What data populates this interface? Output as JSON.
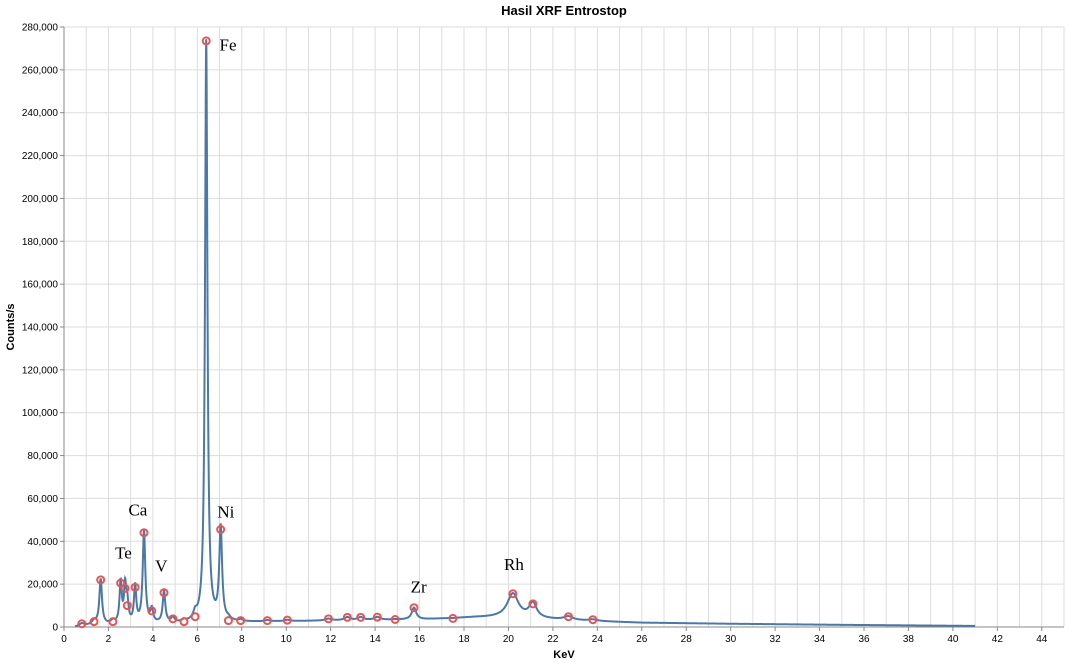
{
  "chart_data": {
    "type": "line",
    "title": "Hasil XRF Entrostop",
    "xlabel": "KeV",
    "ylabel": "Counts/s",
    "xlim": [
      0,
      45
    ],
    "ylim": [
      0,
      280000
    ],
    "x_ticks": [
      0,
      2,
      4,
      6,
      8,
      10,
      12,
      14,
      16,
      18,
      20,
      22,
      24,
      26,
      28,
      30,
      32,
      34,
      36,
      38,
      40,
      42,
      44
    ],
    "y_ticks": [
      0,
      20000,
      40000,
      60000,
      80000,
      100000,
      120000,
      140000,
      160000,
      180000,
      200000,
      220000,
      240000,
      260000,
      280000
    ],
    "y_tick_labels": [
      "0",
      "20,000",
      "40,000",
      "60,000",
      "80,000",
      "100,000",
      "120,000",
      "140,000",
      "160,000",
      "180,000",
      "200,000",
      "220,000",
      "240,000",
      "260,000",
      "280,000"
    ],
    "grid": true,
    "spectrum_range": [
      0.5,
      41
    ],
    "baseline": [
      [
        0.5,
        0
      ],
      [
        1.0,
        500
      ],
      [
        2.0,
        1000
      ],
      [
        5.0,
        1500
      ],
      [
        8.0,
        2200
      ],
      [
        12.0,
        3000
      ],
      [
        16.0,
        3500
      ],
      [
        18.5,
        4500
      ],
      [
        20.0,
        4500
      ],
      [
        23.0,
        3000
      ],
      [
        26.0,
        2000
      ],
      [
        30.0,
        1500
      ],
      [
        35.0,
        1000
      ],
      [
        41.0,
        500
      ]
    ],
    "peaks": [
      {
        "x": 0.8,
        "y": 1500,
        "width": 0.12
      },
      {
        "x": 1.35,
        "y": 2500,
        "width": 0.12
      },
      {
        "x": 1.65,
        "y": 22000,
        "width": 0.07
      },
      {
        "x": 2.2,
        "y": 2500,
        "width": 0.1
      },
      {
        "x": 2.55,
        "y": 20500,
        "width": 0.06
      },
      {
        "x": 2.75,
        "y": 18000,
        "width": 0.06
      },
      {
        "x": 2.85,
        "y": 10000,
        "width": 0.06
      },
      {
        "x": 3.2,
        "y": 18500,
        "width": 0.06
      },
      {
        "x": 3.6,
        "y": 44000,
        "width": 0.07
      },
      {
        "x": 3.95,
        "y": 7500,
        "width": 0.07
      },
      {
        "x": 4.5,
        "y": 16000,
        "width": 0.07
      },
      {
        "x": 4.9,
        "y": 3800,
        "width": 0.09
      },
      {
        "x": 5.4,
        "y": 2500,
        "width": 0.09
      },
      {
        "x": 5.9,
        "y": 4800,
        "width": 0.09
      },
      {
        "x": 6.4,
        "y": 273500,
        "width": 0.065
      },
      {
        "x": 7.05,
        "y": 45500,
        "width": 0.075
      },
      {
        "x": 7.4,
        "y": 3000,
        "width": 0.1
      },
      {
        "x": 7.95,
        "y": 3000,
        "width": 0.1
      },
      {
        "x": 9.15,
        "y": 3000,
        "width": 0.15
      },
      {
        "x": 10.05,
        "y": 3200,
        "width": 0.15
      },
      {
        "x": 11.9,
        "y": 3800,
        "width": 0.15
      },
      {
        "x": 12.75,
        "y": 4500,
        "width": 0.15
      },
      {
        "x": 13.35,
        "y": 4500,
        "width": 0.15
      },
      {
        "x": 14.1,
        "y": 4600,
        "width": 0.15
      },
      {
        "x": 14.9,
        "y": 3500,
        "width": 0.15
      },
      {
        "x": 15.75,
        "y": 9000,
        "width": 0.12
      },
      {
        "x": 17.5,
        "y": 4000,
        "width": 0.15
      },
      {
        "x": 20.2,
        "y": 15500,
        "width": 0.3
      },
      {
        "x": 21.1,
        "y": 10800,
        "width": 0.2
      },
      {
        "x": 22.7,
        "y": 4800,
        "width": 0.25
      },
      {
        "x": 23.8,
        "y": 3400,
        "width": 0.25
      }
    ],
    "annotations": [
      {
        "text": "Fe",
        "x": 7.0,
        "y": 269000
      },
      {
        "text": "Ca",
        "x": 2.9,
        "y": 52000
      },
      {
        "text": "Ni",
        "x": 6.9,
        "y": 51000
      },
      {
        "text": "Te",
        "x": 2.3,
        "y": 32000
      },
      {
        "text": "V",
        "x": 4.1,
        "y": 26000
      },
      {
        "text": "Zr",
        "x": 15.6,
        "y": 16000
      },
      {
        "text": "Rh",
        "x": 19.8,
        "y": 26500
      }
    ]
  },
  "colors": {
    "line": "#4c78a8",
    "marker": "#e45756",
    "grid": "#dddddd"
  }
}
